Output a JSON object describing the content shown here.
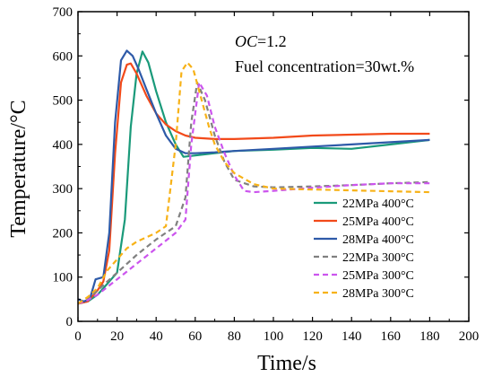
{
  "chart_data": {
    "type": "line",
    "xlabel": "Time/s",
    "ylabel": "Temperature/°C",
    "xlim": [
      0,
      200
    ],
    "ylim": [
      0,
      700
    ],
    "xticks": [
      0,
      20,
      40,
      60,
      80,
      100,
      120,
      140,
      160,
      180,
      200
    ],
    "yticks": [
      0,
      100,
      200,
      300,
      400,
      500,
      600,
      700
    ],
    "grid": false,
    "legend_position": "bottom-right",
    "annotations": {
      "oc_label": "OC",
      "oc_value": "=1.2",
      "fuel": "Fuel concentration=30wt.%"
    },
    "series": [
      {
        "name": "22MPa 400°C",
        "color": "#1a9a7a",
        "dash": "solid",
        "x": [
          0,
          5,
          10,
          15,
          20,
          24,
          27,
          30,
          33,
          36,
          40,
          45,
          50,
          54,
          60,
          70,
          80,
          100,
          120,
          140,
          160,
          180
        ],
        "y": [
          40,
          45,
          60,
          85,
          110,
          230,
          440,
          560,
          610,
          585,
          520,
          450,
          400,
          372,
          375,
          380,
          385,
          388,
          392,
          390,
          400,
          410
        ]
      },
      {
        "name": "25MPa 400°C",
        "color": "#f24a1a",
        "dash": "solid",
        "x": [
          0,
          5,
          10,
          13,
          16,
          19,
          22,
          25,
          27,
          30,
          35,
          40,
          45,
          50,
          55,
          60,
          70,
          80,
          100,
          120,
          140,
          160,
          180
        ],
        "y": [
          40,
          45,
          70,
          90,
          160,
          380,
          540,
          580,
          583,
          560,
          510,
          470,
          445,
          430,
          420,
          415,
          412,
          412,
          415,
          420,
          422,
          424,
          424
        ]
      },
      {
        "name": "28MPa 400°C",
        "color": "#2e5aa8",
        "dash": "solid",
        "x": [
          0,
          3,
          6,
          9,
          13,
          16,
          19,
          22,
          25,
          28,
          31,
          35,
          40,
          45,
          50,
          55,
          60,
          70,
          80,
          100,
          120,
          140,
          160,
          180
        ],
        "y": [
          50,
          45,
          50,
          95,
          100,
          200,
          450,
          590,
          612,
          600,
          570,
          525,
          470,
          420,
          390,
          380,
          380,
          382,
          385,
          390,
          395,
          400,
          405,
          410
        ]
      },
      {
        "name": "22MPa 300°C",
        "color": "#808080",
        "dash": "dashed",
        "x": [
          0,
          5,
          10,
          20,
          30,
          40,
          50,
          55,
          58,
          61,
          65,
          70,
          75,
          80,
          90,
          100,
          120,
          140,
          160,
          180
        ],
        "y": [
          40,
          50,
          70,
          110,
          150,
          185,
          215,
          280,
          450,
          540,
          500,
          420,
          360,
          320,
          305,
          303,
          305,
          308,
          312,
          315
        ]
      },
      {
        "name": "25MPa 300°C",
        "color": "#cc55ee",
        "dash": "dashed",
        "x": [
          0,
          5,
          10,
          20,
          30,
          40,
          50,
          55,
          58,
          62,
          66,
          70,
          75,
          80,
          85,
          90,
          100,
          120,
          140,
          160,
          180
        ],
        "y": [
          40,
          48,
          60,
          95,
          130,
          165,
          200,
          230,
          400,
          540,
          510,
          440,
          380,
          330,
          295,
          292,
          295,
          302,
          308,
          312,
          312
        ]
      },
      {
        "name": "28MPa 300°C",
        "color": "#f7b218",
        "dash": "dashed",
        "x": [
          0,
          5,
          10,
          15,
          20,
          25,
          30,
          40,
          45,
          50,
          53,
          56,
          59,
          63,
          67,
          70,
          75,
          80,
          90,
          100,
          120,
          140,
          160,
          180
        ],
        "y": [
          40,
          55,
          75,
          115,
          140,
          165,
          180,
          200,
          215,
          400,
          565,
          585,
          570,
          505,
          440,
          400,
          360,
          335,
          310,
          300,
          298,
          296,
          294,
          292
        ]
      }
    ]
  }
}
